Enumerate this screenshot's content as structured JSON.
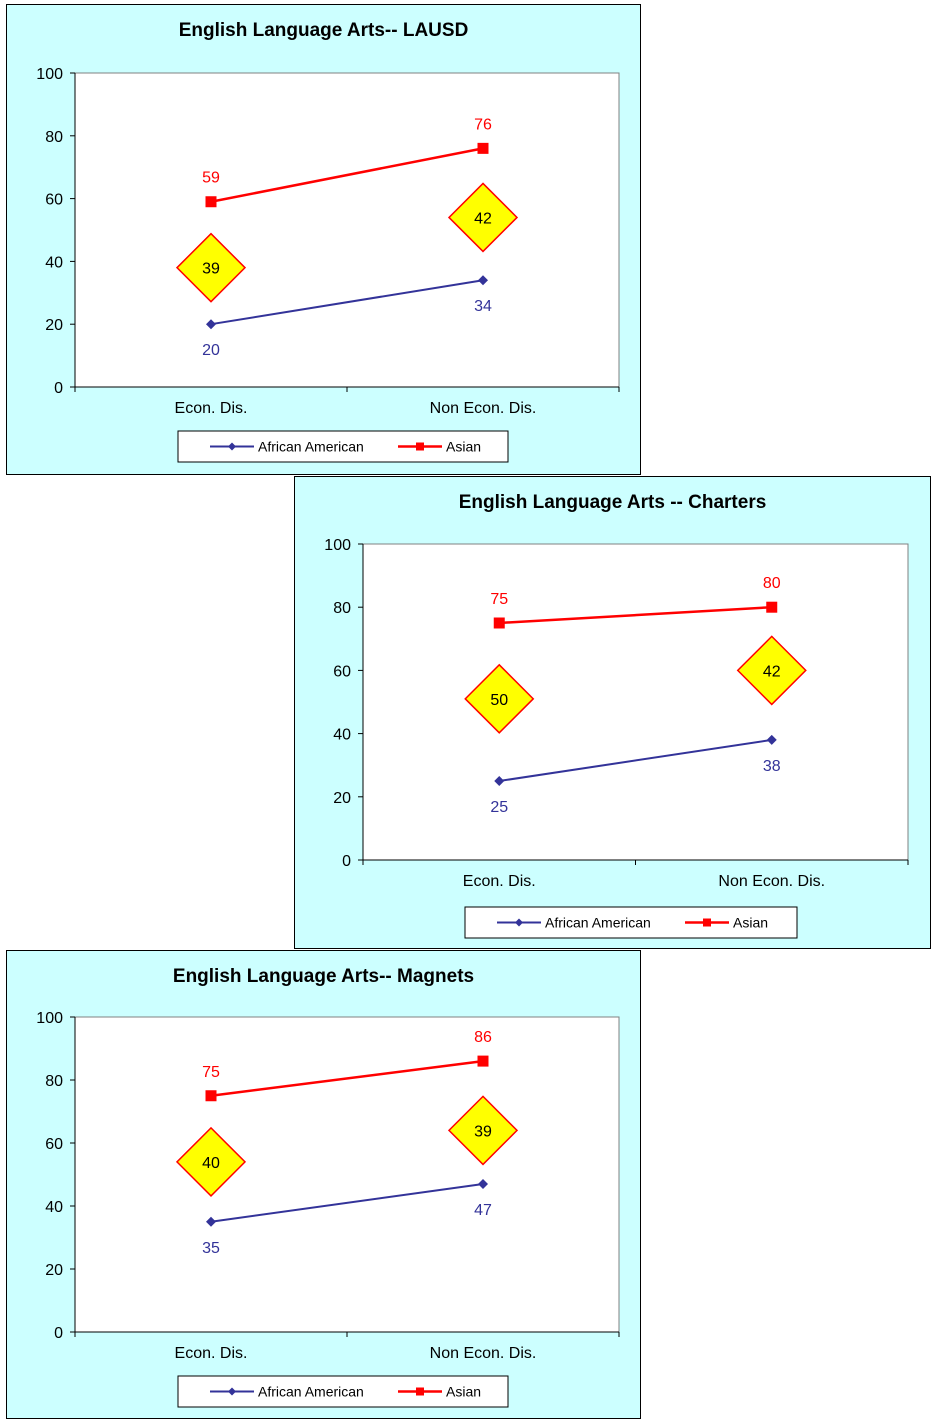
{
  "colors": {
    "panel_bg": "#ccffff",
    "african_american": "#333399",
    "asian": "#ff0000",
    "gap_marker_fill": "#ffff00",
    "gap_marker_stroke": "#ff0000"
  },
  "chart_data": [
    {
      "type": "line",
      "title": "English Language Arts--  LAUSD",
      "categories": [
        "Econ. Dis.",
        "Non Econ. Dis."
      ],
      "ylim": [
        0,
        100
      ],
      "yticks": [
        0,
        20,
        40,
        60,
        80,
        100
      ],
      "series": [
        {
          "name": "African American",
          "values": [
            20,
            34
          ],
          "marker": "diamond",
          "color": "#333399"
        },
        {
          "name": "Asian",
          "values": [
            59,
            76
          ],
          "marker": "square",
          "color": "#ff0000"
        }
      ],
      "gap_annotations": [
        {
          "category": "Econ. Dis.",
          "label": "39",
          "y": 38
        },
        {
          "category": "Non Econ. Dis.",
          "label": "42",
          "y": 54
        }
      ],
      "legend": "bottom"
    },
    {
      "type": "line",
      "title": "English Language Arts -- Charters",
      "categories": [
        "Econ. Dis.",
        "Non Econ. Dis."
      ],
      "ylim": [
        0,
        100
      ],
      "yticks": [
        0,
        20,
        40,
        60,
        80,
        100
      ],
      "series": [
        {
          "name": "African American",
          "values": [
            25,
            38
          ],
          "marker": "diamond",
          "color": "#333399"
        },
        {
          "name": "Asian",
          "values": [
            75,
            80
          ],
          "marker": "square",
          "color": "#ff0000"
        }
      ],
      "gap_annotations": [
        {
          "category": "Econ. Dis.",
          "label": "50",
          "y": 51
        },
        {
          "category": "Non Econ. Dis.",
          "label": "42",
          "y": 60
        }
      ],
      "legend": "bottom"
    },
    {
      "type": "line",
      "title": "English Language Arts--  Magnets",
      "categories": [
        "Econ. Dis.",
        "Non Econ. Dis."
      ],
      "ylim": [
        0,
        100
      ],
      "yticks": [
        0,
        20,
        40,
        60,
        80,
        100
      ],
      "series": [
        {
          "name": "African American",
          "values": [
            35,
            47
          ],
          "marker": "diamond",
          "color": "#333399"
        },
        {
          "name": "Asian",
          "values": [
            75,
            86
          ],
          "marker": "square",
          "color": "#ff0000"
        }
      ],
      "gap_annotations": [
        {
          "category": "Econ. Dis.",
          "label": "40",
          "y": 54
        },
        {
          "category": "Non Econ. Dis.",
          "label": "39",
          "y": 64
        }
      ],
      "legend": "bottom"
    }
  ]
}
